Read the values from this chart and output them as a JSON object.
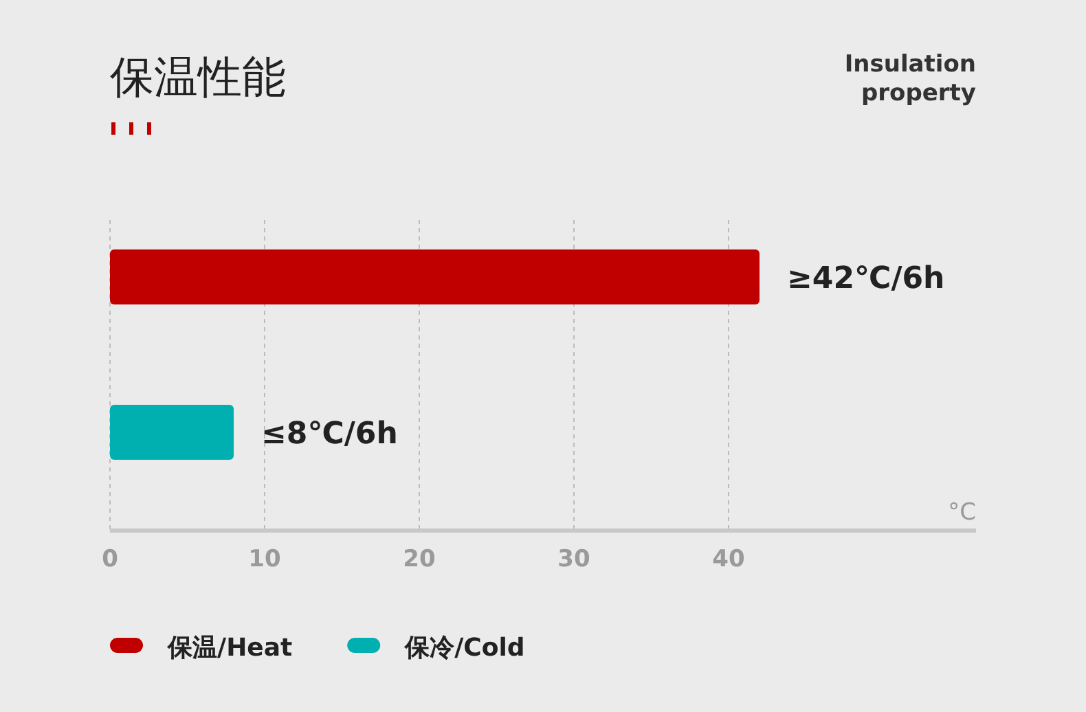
{
  "chart_data": {
    "type": "bar",
    "orientation": "horizontal",
    "title": "保温性能",
    "subtitle": "Insulation property",
    "xlabel": "°C",
    "categories": [
      null,
      null
    ],
    "series": [
      {
        "name": "保温/Heat",
        "color": "#c00000",
        "values": [
          42,
          null
        ],
        "value_labels": [
          "≥42℃/6h",
          null
        ]
      },
      {
        "name": "保冷/Cold",
        "color": "#00b0b0",
        "values": [
          null,
          8
        ],
        "value_labels": [
          null,
          "≤8℃/6h"
        ]
      }
    ],
    "xlim": [
      0,
      56
    ],
    "xticks": [
      0,
      10,
      20,
      30,
      40
    ],
    "grid": "x",
    "legend": "bottom left"
  }
}
